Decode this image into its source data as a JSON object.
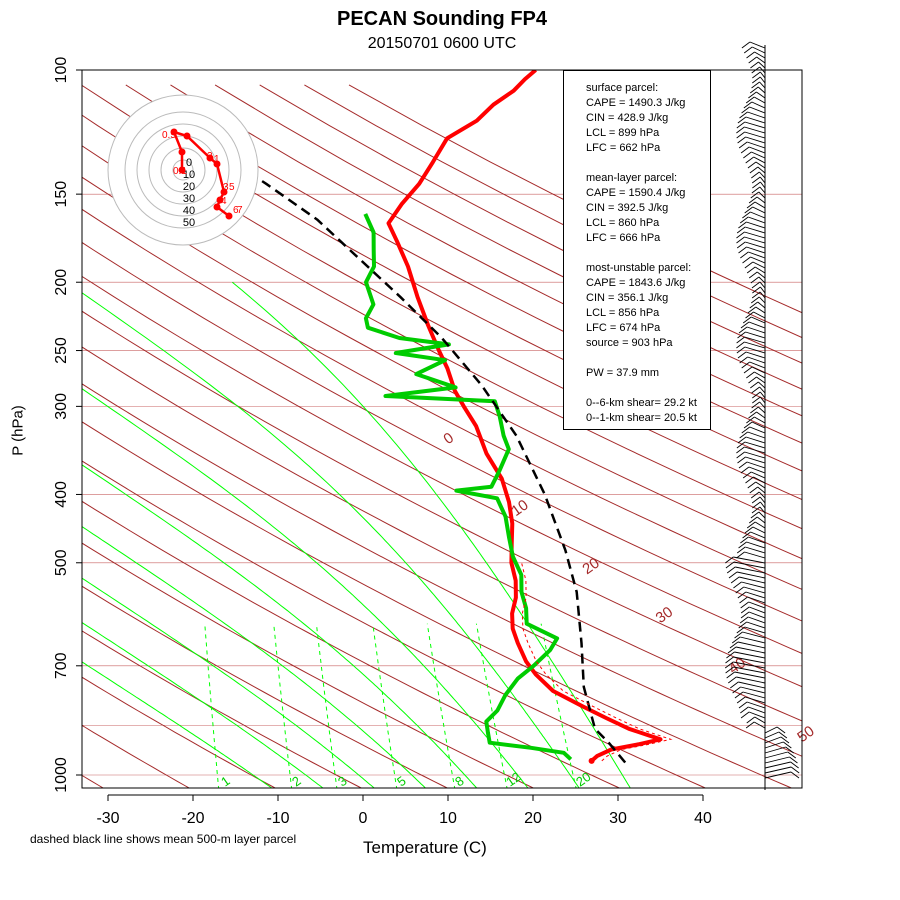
{
  "title": "PECAN Sounding FP4",
  "subtitle": "20150701 0600 UTC",
  "footnote": "dashed black line shows mean 500-m layer parcel",
  "colors": {
    "temperature": "#ff0000",
    "dewpoint": "#00cc00",
    "parcel": "#000000",
    "dry_adiabat": "#a52a2a",
    "moist_adiabat": "#00ff00",
    "isobar": "#b22222"
  },
  "info_box": {
    "lines": [
      "surface parcel:",
      "CAPE = 1490.3 J/kg",
      "CIN = 428.9 J/kg",
      "LCL = 899 hPa",
      "LFC = 662 hPa",
      "",
      "mean-layer parcel:",
      "CAPE = 1590.4 J/kg",
      "CIN = 392.5 J/kg",
      "LCL = 860 hPa",
      "LFC = 666 hPa",
      "",
      "most-unstable parcel:",
      "CAPE = 1843.6 J/kg",
      "CIN = 356.1 J/kg",
      "LCL = 856 hPa",
      "LFC = 674 hPa",
      "source = 903 hPa",
      "",
      "PW =  37.9 mm",
      "",
      "0--6-km shear= 29.2 kt",
      "0--1-km shear= 20.5 kt"
    ]
  },
  "chart_data": {
    "type": "line",
    "xlabel": "Temperature (C)",
    "ylabel": "P (hPa)",
    "x_ticks": [
      -30,
      -20,
      -10,
      0,
      10,
      20,
      30,
      40
    ],
    "y_ticks": [
      100,
      150,
      200,
      250,
      300,
      400,
      500,
      700,
      1000
    ],
    "xlim": [
      -33,
      45
    ],
    "ylim": [
      1050,
      100
    ],
    "y_scale": "log",
    "isotherm_labels": [
      {
        "text": "0",
        "t": 0,
        "p": 340
      },
      {
        "text": "10",
        "t": 10,
        "p": 430
      },
      {
        "text": "20",
        "t": 20,
        "p": 520
      },
      {
        "text": "30",
        "t": 30,
        "p": 610
      },
      {
        "text": "40",
        "t": 40,
        "p": 720
      },
      {
        "text": "50",
        "t": 50,
        "p": 900
      }
    ],
    "mixing_ratio_labels": [
      "1",
      "2",
      "3",
      "5",
      "8",
      "12",
      "20"
    ],
    "series": [
      {
        "name": "Temperature",
        "points": [
          [
            26.5,
            955
          ],
          [
            27.0,
            940
          ],
          [
            28.5,
            920
          ],
          [
            31.5,
            905
          ],
          [
            34.0,
            890
          ],
          [
            30.0,
            860
          ],
          [
            27.0,
            830
          ],
          [
            24.0,
            800
          ],
          [
            20.0,
            760
          ],
          [
            17.5,
            720
          ],
          [
            16.0,
            690
          ],
          [
            14.5,
            650
          ],
          [
            13.5,
            620
          ],
          [
            13.0,
            590
          ],
          [
            13.0,
            560
          ],
          [
            12.5,
            530
          ],
          [
            11.5,
            500
          ],
          [
            11.0,
            470
          ],
          [
            10.5,
            440
          ],
          [
            9.5,
            410
          ],
          [
            8.0,
            380
          ],
          [
            5.5,
            350
          ],
          [
            3.5,
            320
          ],
          [
            1.5,
            300
          ],
          [
            0.0,
            285
          ],
          [
            -1.5,
            265
          ],
          [
            -3.0,
            250
          ],
          [
            -5.0,
            230
          ],
          [
            -7.0,
            210
          ],
          [
            -9.0,
            190
          ],
          [
            -11.0,
            175
          ],
          [
            -12.5,
            165
          ],
          [
            -11.5,
            155
          ],
          [
            -10.0,
            145
          ],
          [
            -9.0,
            135
          ],
          [
            -8.0,
            125
          ],
          [
            -5.0,
            118
          ],
          [
            -3.5,
            112
          ],
          [
            -1.5,
            107
          ],
          [
            -0.5,
            103
          ],
          [
            0.5,
            100
          ]
        ]
      },
      {
        "name": "Dewpoint",
        "points": [
          [
            24.0,
            950
          ],
          [
            23.0,
            930
          ],
          [
            19.0,
            915
          ],
          [
            14.0,
            900
          ],
          [
            13.5,
            870
          ],
          [
            13.0,
            840
          ],
          [
            14.0,
            810
          ],
          [
            14.5,
            770
          ],
          [
            15.5,
            730
          ],
          [
            17.0,
            700
          ],
          [
            18.5,
            665
          ],
          [
            19.0,
            640
          ],
          [
            17.0,
            625
          ],
          [
            15.0,
            610
          ],
          [
            14.5,
            580
          ],
          [
            13.5,
            550
          ],
          [
            13.0,
            520
          ],
          [
            11.5,
            490
          ],
          [
            10.5,
            460
          ],
          [
            9.5,
            430
          ],
          [
            8.0,
            405
          ],
          [
            3.0,
            395
          ],
          [
            7.0,
            390
          ],
          [
            7.5,
            370
          ],
          [
            8.0,
            345
          ],
          [
            7.0,
            330
          ],
          [
            6.0,
            310
          ],
          [
            5.0,
            295
          ],
          [
            -8.0,
            290
          ],
          [
            0.0,
            282
          ],
          [
            -5.0,
            270
          ],
          [
            -2.0,
            258
          ],
          [
            -8.0,
            252
          ],
          [
            -2.0,
            245
          ],
          [
            -8.0,
            240
          ],
          [
            -12.0,
            232
          ],
          [
            -12.5,
            225
          ],
          [
            -12.0,
            215
          ],
          [
            -13.5,
            200
          ],
          [
            -13.0,
            190
          ],
          [
            -13.5,
            180
          ],
          [
            -14.0,
            170
          ],
          [
            -15.5,
            160
          ]
        ]
      },
      {
        "name": "Parcel",
        "points": [
          [
            30.5,
            960
          ],
          [
            28.0,
            900
          ],
          [
            26.0,
            860
          ],
          [
            23.5,
            750
          ],
          [
            22.0,
            650
          ],
          [
            20.0,
            550
          ],
          [
            17.5,
            480
          ],
          [
            13.5,
            400
          ],
          [
            8.5,
            330
          ],
          [
            3.0,
            280
          ],
          [
            -3.0,
            240
          ],
          [
            -9.0,
            210
          ],
          [
            -15.0,
            185
          ],
          [
            -21.0,
            163
          ],
          [
            -28.0,
            145
          ],
          [
            -34.0,
            132
          ]
        ]
      }
    ]
  },
  "hodograph": {
    "ring_labels": [
      "0",
      "10",
      "20",
      "30",
      "40",
      "50"
    ],
    "point_labels": [
      "0.1",
      "0.5",
      "3",
      "1",
      "3",
      "4",
      "6",
      "5",
      "7"
    ]
  }
}
